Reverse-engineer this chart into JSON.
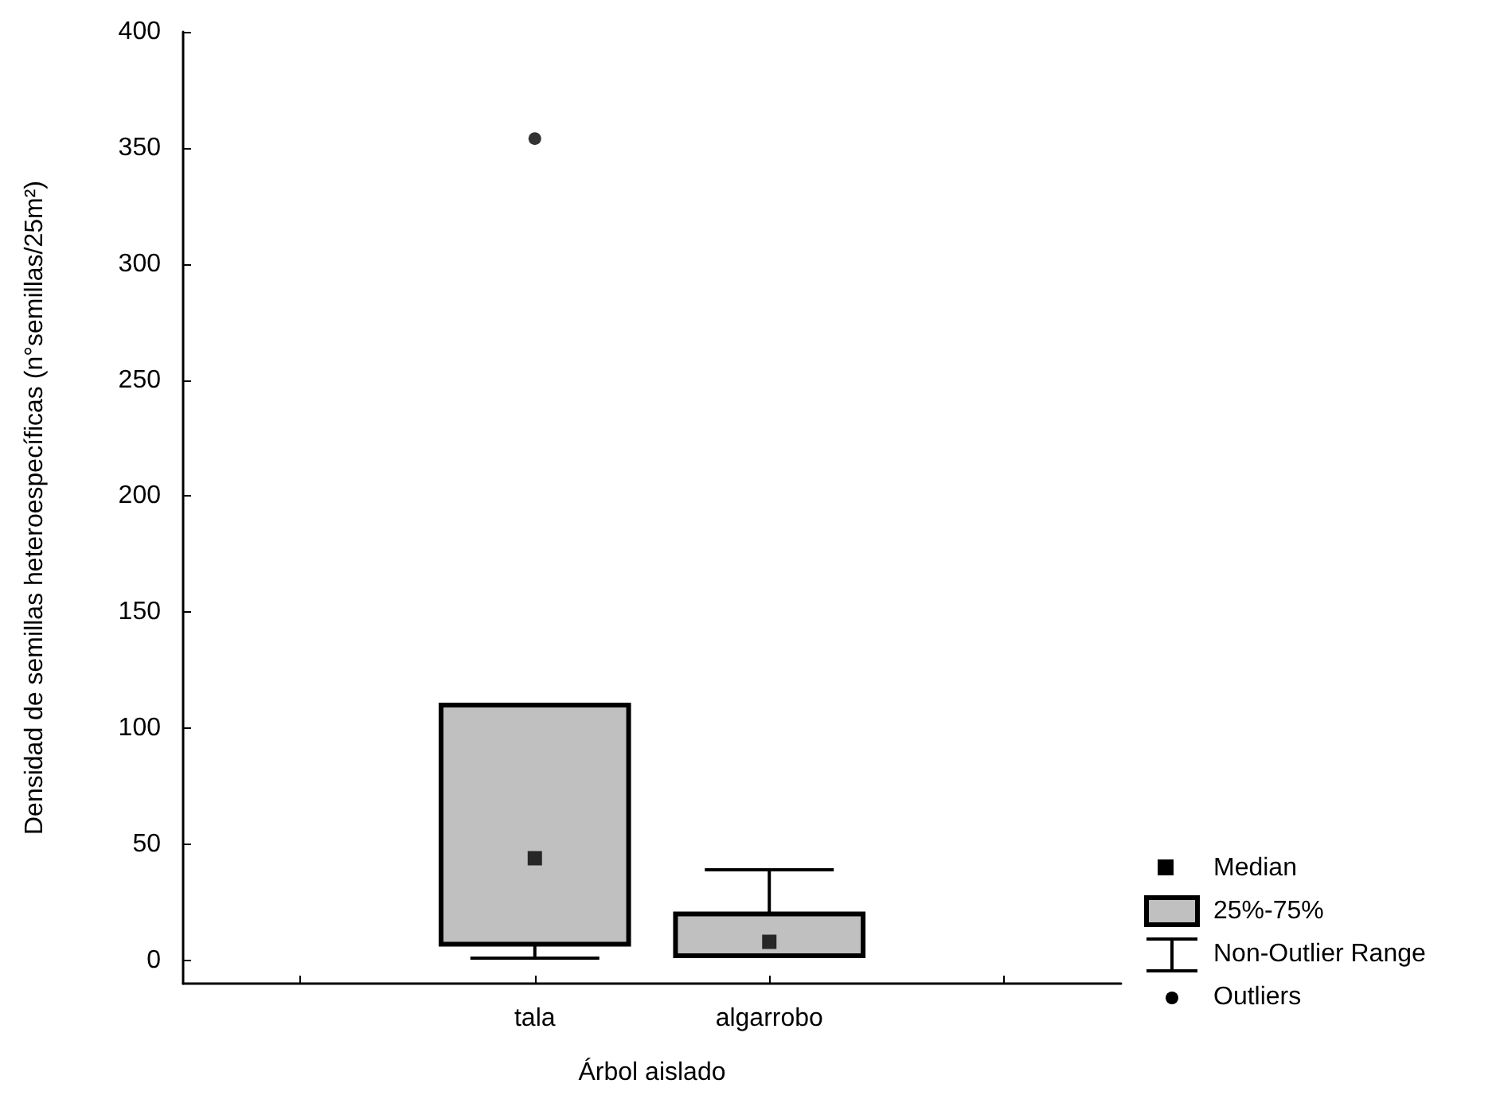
{
  "chart_data": {
    "type": "box",
    "xlabel": "Árbol aislado",
    "ylabel": "Densidad de semillas heteroespecíficas (n°semillas/25m²)",
    "categories": [
      null,
      "tala",
      "algarrobo",
      null
    ],
    "color": "#c0c0c0",
    "boxes": [
      null,
      {
        "low": 1,
        "q1": 7,
        "median": 44,
        "q3": 110,
        "high": 110,
        "outliers": [
          354
        ]
      },
      {
        "low": 2,
        "q1": 2,
        "median": 8,
        "q3": 20,
        "high": 39
      },
      null
    ],
    "ylim": [
      -10,
      400
    ],
    "yticks": [
      0,
      50,
      100,
      150,
      200,
      250,
      300,
      350,
      400
    ],
    "grid": false,
    "annotations": [
      "Median",
      "25%-75%",
      "Non-Outlier Range",
      "Outliers"
    ]
  }
}
